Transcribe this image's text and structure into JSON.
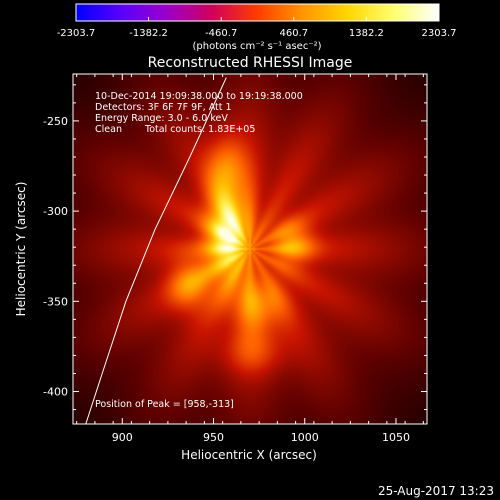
{
  "colorbar": {
    "ticks": [
      -2303.7,
      -1382.2,
      -460.7,
      460.7,
      1382.2,
      2303.7
    ],
    "tick_labels": [
      "-2303.7",
      "-1382.2",
      "-460.7",
      "460.7",
      "1382.2",
      "2303.7"
    ],
    "unit": "(photons cm⁻² s⁻¹ asec⁻²)",
    "range": [
      -2303.7,
      2303.7
    ],
    "colors": [
      "#0000ff",
      "#5a00ff",
      "#9a00c8",
      "#d2005a",
      "#ff3c00",
      "#ff9600",
      "#ffd700",
      "#ffff70",
      "#ffffff"
    ]
  },
  "chart_data": {
    "type": "heatmap",
    "title": "Reconstructed RHESSI Image",
    "xlabel": "Heliocentric X (arcsec)",
    "ylabel": "Heliocentric Y (arcsec)",
    "xlim": [
      873,
      1067
    ],
    "ylim": [
      -418,
      -224
    ],
    "x_ticks": [
      900,
      950,
      1000,
      1050
    ],
    "y_ticks": [
      -250,
      -300,
      -350,
      -400
    ],
    "info_lines": [
      "10-Dec-2014 19:09:38.000 to 19:19:38.000",
      "Detectors: 3F 6F 7F 9F, Att 1",
      "Energy Range: 3.0 - 6.0 keV"
    ],
    "clean_label": "Clean",
    "total_counts": "Total counts: 1.83E+05",
    "peak_label": "Position of Peak = [958,-313]",
    "peak": [
      958,
      -313
    ],
    "sources": [
      {
        "x": 958,
        "y": -313,
        "amp": 1.0,
        "sx": 9,
        "sy": 18
      },
      {
        "x": 957,
        "y": -275,
        "amp": 0.55,
        "sx": 8,
        "sy": 13
      },
      {
        "x": 993,
        "y": -318,
        "amp": 0.6,
        "sx": 9,
        "sy": 9
      },
      {
        "x": 937,
        "y": -341,
        "amp": 0.55,
        "sx": 9,
        "sy": 11
      },
      {
        "x": 975,
        "y": -352,
        "amp": 0.55,
        "sx": 11,
        "sy": 11
      },
      {
        "x": 972,
        "y": -378,
        "amp": 0.35,
        "sx": 13,
        "sy": 9
      }
    ],
    "limb_line": [
      [
        880,
        -418
      ],
      [
        889,
        -390
      ],
      [
        902,
        -350
      ],
      [
        918,
        -310
      ],
      [
        937,
        -270
      ],
      [
        957,
        -226
      ]
    ]
  },
  "timestamp": "25-Aug-2017 13:23"
}
